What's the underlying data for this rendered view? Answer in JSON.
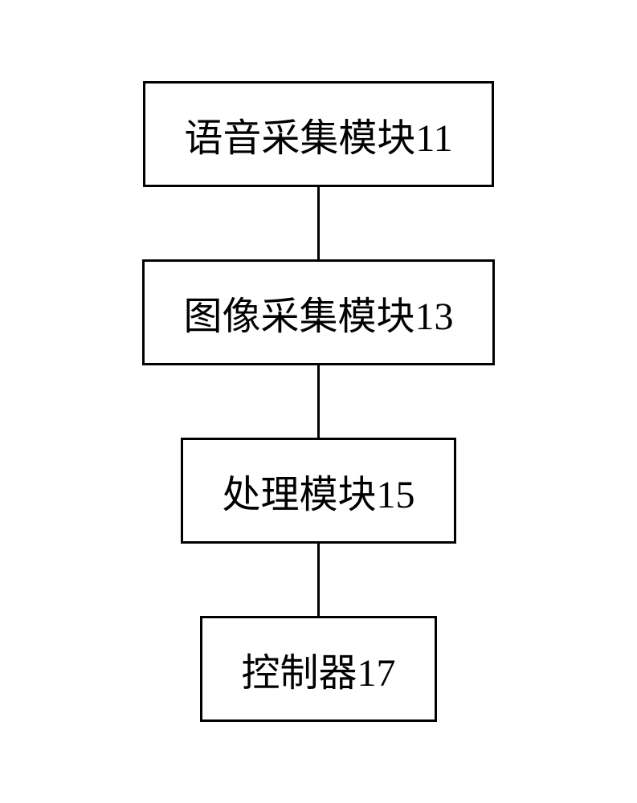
{
  "diagram": {
    "type": "flowchart",
    "nodes": [
      {
        "id": "n1",
        "label": "语音采集模块11"
      },
      {
        "id": "n2",
        "label": "图像采集模块13"
      },
      {
        "id": "n3",
        "label": "处理模块15"
      },
      {
        "id": "n4",
        "label": "控制器17"
      }
    ],
    "edges": [
      {
        "from": "n1",
        "to": "n2"
      },
      {
        "from": "n2",
        "to": "n3"
      },
      {
        "from": "n3",
        "to": "n4"
      }
    ],
    "style": {
      "box_border_color": "#000000",
      "box_border_width": 3,
      "box_background_color": "#ffffff",
      "box_padding_vertical": 28,
      "box_padding_horizontal": 48,
      "font_size": 48,
      "font_color": "#000000",
      "font_family": "SimSun",
      "connector_color": "#000000",
      "connector_width": 3,
      "connector_height": 90,
      "page_background": "#ffffff"
    }
  }
}
